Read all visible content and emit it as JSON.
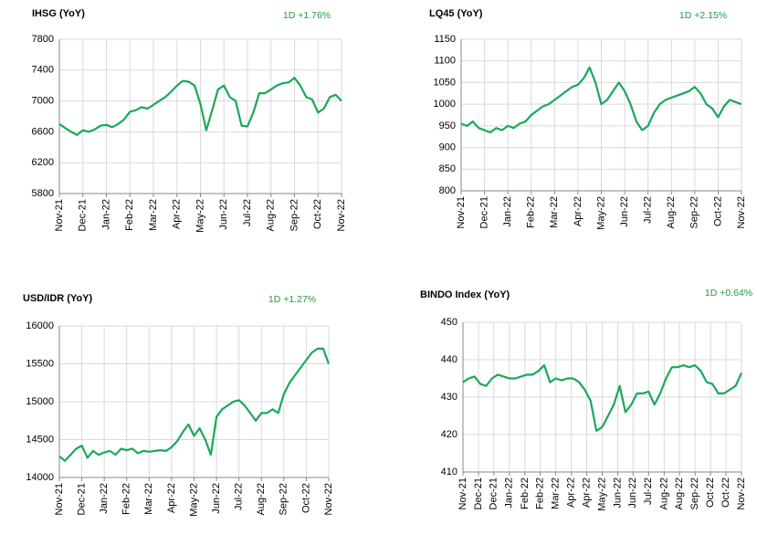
{
  "chart_data": [
    {
      "type": "line",
      "title": "IHSG (YoY)",
      "annotation": "1D +1.76%",
      "color": "#1aa85a",
      "grid": true,
      "ylim": [
        5800,
        7800
      ],
      "yticks": [
        5800,
        6200,
        6600,
        7000,
        7400,
        7800
      ],
      "xlim": [
        0,
        12
      ],
      "xticks": [
        {
          "value": 0,
          "label": "Nov-21"
        },
        {
          "value": 1,
          "label": "Dec-21"
        },
        {
          "value": 2,
          "label": "Jan-22"
        },
        {
          "value": 3,
          "label": "Feb-22"
        },
        {
          "value": 4,
          "label": "Mar-22"
        },
        {
          "value": 5,
          "label": "Apr-22"
        },
        {
          "value": 6,
          "label": "May-22"
        },
        {
          "value": 7,
          "label": "Jun-22"
        },
        {
          "value": 8,
          "label": "Jul-22"
        },
        {
          "value": 9,
          "label": "Aug-22"
        },
        {
          "value": 10,
          "label": "Sep-22"
        },
        {
          "value": 11,
          "label": "Oct-22"
        },
        {
          "value": 12,
          "label": "Nov-22"
        }
      ],
      "x": [
        0,
        0.25,
        0.5,
        0.75,
        1,
        1.25,
        1.5,
        1.75,
        2,
        2.25,
        2.5,
        2.75,
        3,
        3.25,
        3.5,
        3.75,
        4,
        4.25,
        4.5,
        4.75,
        5,
        5.25,
        5.5,
        5.75,
        6,
        6.25,
        6.5,
        6.75,
        7,
        7.25,
        7.5,
        7.75,
        8,
        8.25,
        8.5,
        8.75,
        9,
        9.25,
        9.5,
        9.75,
        10,
        10.25,
        10.5,
        10.75,
        11,
        11.25,
        11.5,
        11.75,
        12
      ],
      "values": [
        6700,
        6650,
        6600,
        6560,
        6620,
        6600,
        6630,
        6680,
        6690,
        6660,
        6700,
        6760,
        6860,
        6880,
        6920,
        6900,
        6950,
        7000,
        7050,
        7120,
        7200,
        7260,
        7250,
        7200,
        6960,
        6620,
        6880,
        7150,
        7200,
        7050,
        7000,
        6680,
        6670,
        6850,
        7100,
        7100,
        7150,
        7200,
        7230,
        7240,
        7300,
        7200,
        7050,
        7020,
        6850,
        6900,
        7050,
        7080,
        7000
      ]
    },
    {
      "type": "line",
      "title": "LQ45 (YoY)",
      "annotation": "1D +2.15%",
      "color": "#1aa85a",
      "grid": true,
      "ylim": [
        800,
        1150
      ],
      "yticks": [
        800,
        850,
        900,
        950,
        1000,
        1050,
        1100,
        1150
      ],
      "xlim": [
        0,
        12
      ],
      "xticks": [
        {
          "value": 0,
          "label": "Nov-21"
        },
        {
          "value": 1,
          "label": "Dec-21"
        },
        {
          "value": 2,
          "label": "Jan-22"
        },
        {
          "value": 3,
          "label": "Feb-22"
        },
        {
          "value": 4,
          "label": "Mar-22"
        },
        {
          "value": 5,
          "label": "Apr-22"
        },
        {
          "value": 6,
          "label": "May-22"
        },
        {
          "value": 7,
          "label": "Jun-22"
        },
        {
          "value": 8,
          "label": "Jul-22"
        },
        {
          "value": 9,
          "label": "Aug-22"
        },
        {
          "value": 10,
          "label": "Sep-22"
        },
        {
          "value": 11,
          "label": "Oct-22"
        },
        {
          "value": 12,
          "label": "Nov-22"
        }
      ],
      "x": [
        0,
        0.25,
        0.5,
        0.75,
        1,
        1.25,
        1.5,
        1.75,
        2,
        2.25,
        2.5,
        2.75,
        3,
        3.25,
        3.5,
        3.75,
        4,
        4.25,
        4.5,
        4.75,
        5,
        5.25,
        5.5,
        5.75,
        6,
        6.25,
        6.5,
        6.75,
        7,
        7.25,
        7.5,
        7.75,
        8,
        8.25,
        8.5,
        8.75,
        9,
        9.25,
        9.5,
        9.75,
        10,
        10.25,
        10.5,
        10.75,
        11,
        11.25,
        11.5,
        11.75,
        12
      ],
      "values": [
        955,
        950,
        960,
        945,
        940,
        935,
        945,
        940,
        950,
        945,
        955,
        960,
        975,
        985,
        995,
        1000,
        1010,
        1020,
        1030,
        1040,
        1045,
        1060,
        1085,
        1050,
        1000,
        1010,
        1030,
        1050,
        1030,
        1000,
        960,
        940,
        950,
        980,
        1000,
        1010,
        1015,
        1020,
        1025,
        1030,
        1040,
        1025,
        1000,
        990,
        970,
        995,
        1010,
        1005,
        1000
      ]
    },
    {
      "type": "line",
      "title": "USD/IDR  (YoY)",
      "annotation": "1D +1.27%",
      "color": "#1aa85a",
      "grid": true,
      "ylim": [
        14000,
        16000
      ],
      "yticks": [
        14000,
        14500,
        15000,
        15500,
        16000
      ],
      "xlim": [
        0,
        12
      ],
      "xticks": [
        {
          "value": 0,
          "label": "Nov-21"
        },
        {
          "value": 1,
          "label": "Dec-21"
        },
        {
          "value": 2,
          "label": "Jan-22"
        },
        {
          "value": 3,
          "label": "Feb-22"
        },
        {
          "value": 4,
          "label": "Mar-22"
        },
        {
          "value": 5,
          "label": "Apr-22"
        },
        {
          "value": 6,
          "label": "May-22"
        },
        {
          "value": 7,
          "label": "Jun-22"
        },
        {
          "value": 8,
          "label": "Jul-22"
        },
        {
          "value": 9,
          "label": "Aug-22"
        },
        {
          "value": 10,
          "label": "Sep-22"
        },
        {
          "value": 11,
          "label": "Oct-22"
        },
        {
          "value": 12,
          "label": "Nov-22"
        }
      ],
      "x": [
        0,
        0.25,
        0.5,
        0.75,
        1,
        1.25,
        1.5,
        1.75,
        2,
        2.25,
        2.5,
        2.75,
        3,
        3.25,
        3.5,
        3.75,
        4,
        4.25,
        4.5,
        4.75,
        5,
        5.25,
        5.5,
        5.75,
        6,
        6.25,
        6.5,
        6.75,
        7,
        7.25,
        7.5,
        7.75,
        8,
        8.25,
        8.5,
        8.75,
        9,
        9.25,
        9.5,
        9.75,
        10,
        10.25,
        10.5,
        10.75,
        11,
        11.25,
        11.5,
        11.75,
        12
      ],
      "values": [
        14280,
        14220,
        14300,
        14380,
        14420,
        14260,
        14350,
        14300,
        14330,
        14350,
        14300,
        14380,
        14360,
        14380,
        14320,
        14350,
        14340,
        14350,
        14360,
        14350,
        14400,
        14480,
        14600,
        14700,
        14550,
        14650,
        14500,
        14300,
        14800,
        14900,
        14950,
        15000,
        15020,
        14950,
        14850,
        14750,
        14850,
        14850,
        14900,
        14850,
        15100,
        15250,
        15350,
        15450,
        15550,
        15650,
        15700,
        15700,
        15500
      ]
    },
    {
      "type": "line",
      "title": "BINDO Index (YoY)",
      "annotation": "1D +0.64%",
      "color": "#1aa85a",
      "grid": true,
      "ylim": [
        410,
        450
      ],
      "yticks": [
        410,
        420,
        430,
        440,
        450
      ],
      "xlim": [
        0,
        12
      ],
      "xticks": [
        {
          "value": 0,
          "label": "Nov-21"
        },
        {
          "value": 0.67,
          "label": "Dec-21"
        },
        {
          "value": 1.33,
          "label": "Dec-21"
        },
        {
          "value": 2,
          "label": "Jan-22"
        },
        {
          "value": 2.67,
          "label": "Feb-22"
        },
        {
          "value": 3.33,
          "label": "Feb-22"
        },
        {
          "value": 4,
          "label": "Mar-22"
        },
        {
          "value": 4.67,
          "label": "Apr-22"
        },
        {
          "value": 5.33,
          "label": "Apr-22"
        },
        {
          "value": 6,
          "label": "May-22"
        },
        {
          "value": 6.67,
          "label": "Jun-22"
        },
        {
          "value": 7.33,
          "label": "Jun-22"
        },
        {
          "value": 8,
          "label": "Jul-22"
        },
        {
          "value": 8.67,
          "label": "Aug-22"
        },
        {
          "value": 9.33,
          "label": "Aug-22"
        },
        {
          "value": 10,
          "label": "Sep-22"
        },
        {
          "value": 10.67,
          "label": "Oct-22"
        },
        {
          "value": 11.33,
          "label": "Oct-22"
        },
        {
          "value": 12,
          "label": "Nov-22"
        }
      ],
      "x": [
        0,
        0.25,
        0.5,
        0.75,
        1,
        1.25,
        1.5,
        1.75,
        2,
        2.25,
        2.5,
        2.75,
        3,
        3.25,
        3.5,
        3.75,
        4,
        4.25,
        4.5,
        4.75,
        5,
        5.25,
        5.5,
        5.75,
        6,
        6.25,
        6.5,
        6.75,
        7,
        7.25,
        7.5,
        7.75,
        8,
        8.25,
        8.5,
        8.75,
        9,
        9.25,
        9.5,
        9.75,
        10,
        10.25,
        10.5,
        10.75,
        11,
        11.25,
        11.5,
        11.75,
        12
      ],
      "values": [
        434,
        435,
        435.5,
        433.5,
        433,
        435,
        436,
        435.5,
        435,
        435,
        435.5,
        436,
        436,
        437,
        438.5,
        434,
        435,
        434.5,
        435,
        435,
        434,
        432,
        429,
        421,
        422,
        425,
        428,
        433,
        426,
        428,
        431,
        431,
        431.5,
        428,
        431,
        435,
        438,
        438,
        438.5,
        438,
        438.5,
        437,
        434,
        433.5,
        431,
        431,
        432,
        433,
        436.5
      ]
    }
  ]
}
